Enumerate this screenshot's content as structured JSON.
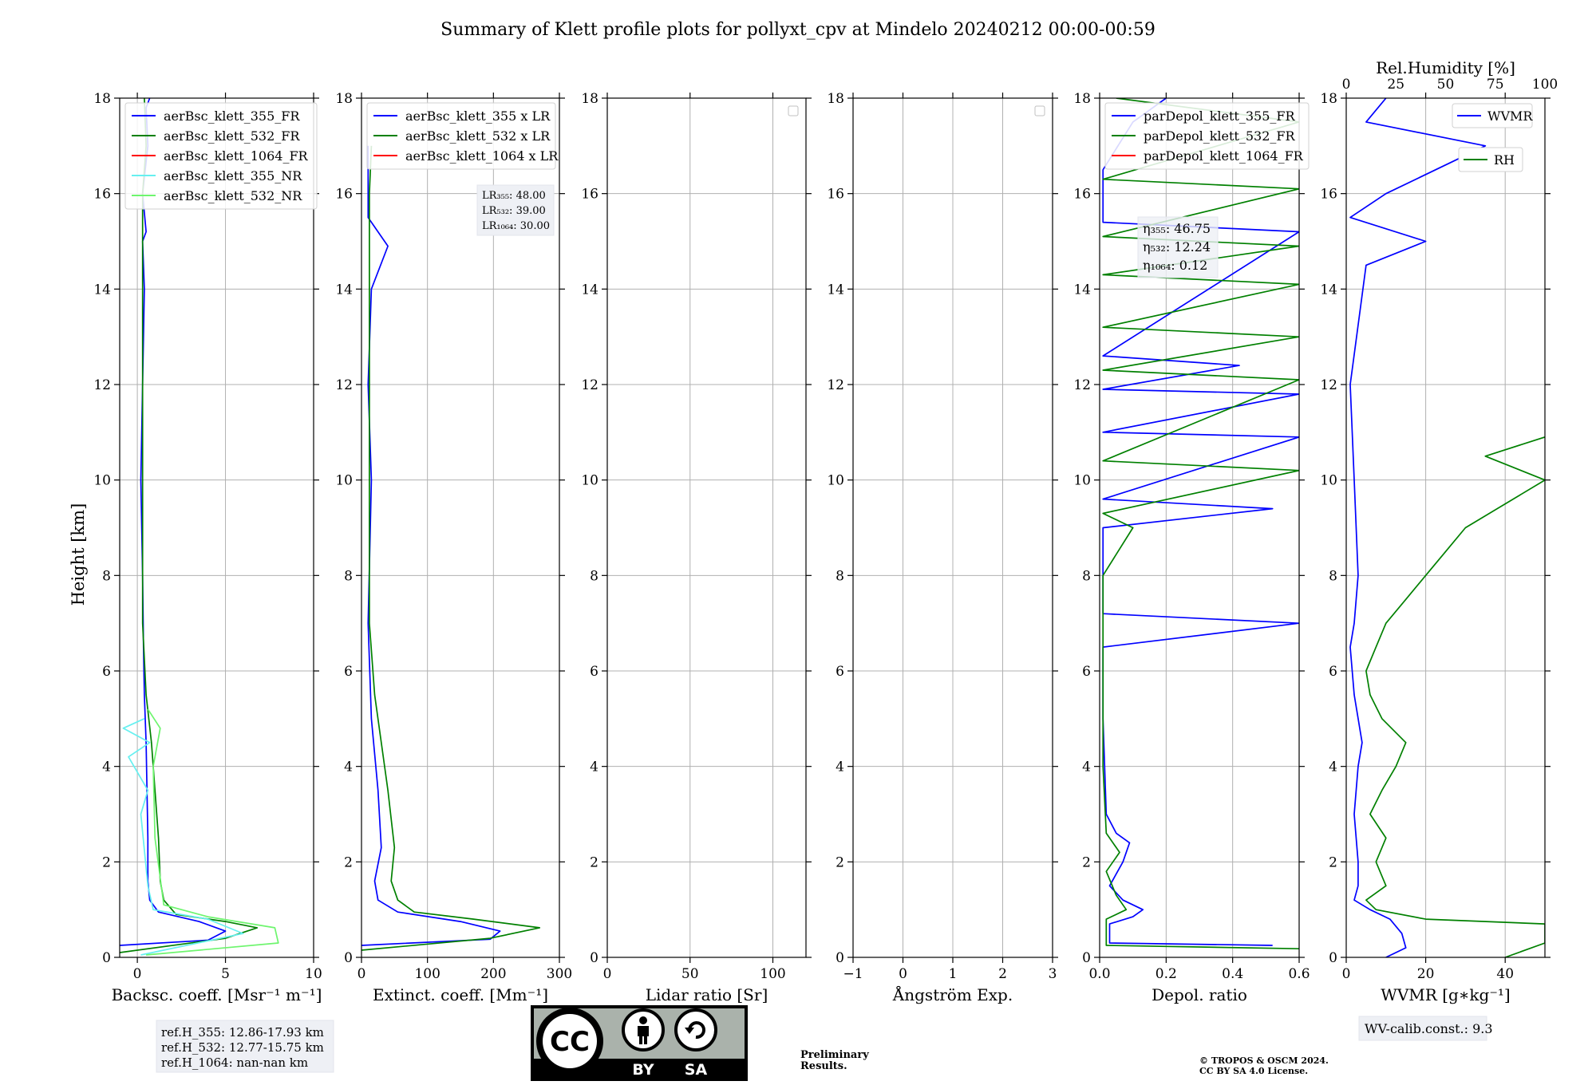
{
  "title": "Summary of Klett profile plots for pollyxt_cpv at Mindelo 20240212 00:00-00:59",
  "y_axis": {
    "label": "Height [km]",
    "range": [
      0,
      18
    ],
    "ticks": [
      "0",
      "2",
      "4",
      "6",
      "8",
      "10",
      "12",
      "14",
      "16",
      "18"
    ]
  },
  "colors": {
    "c355": "#0000ff",
    "c532": "#008000",
    "c1064": "#ff0000",
    "c355nr": "#66f0f0",
    "c532nr": "#6ef56e",
    "preliminary": "#e8302e"
  },
  "chart_data": [
    {
      "type": "line",
      "title": "Backscatter",
      "xlabel": "Backsc. coeff. [Msr⁻¹ m⁻¹]",
      "xlim": [
        -1,
        10
      ],
      "xticks": [
        {
          "v": 0,
          "t": "0"
        },
        {
          "v": 5,
          "t": "5"
        },
        {
          "v": 10,
          "t": "10"
        }
      ],
      "legend": [
        "aerBsc_klett_355_FR",
        "aerBsc_klett_532_FR",
        "aerBsc_klett_1064_FR",
        "aerBsc_klett_355_NR",
        "aerBsc_klett_532_NR"
      ],
      "series": [
        {
          "name": "aerBsc_klett_355_FR",
          "color": "#0000ff",
          "points": [
            [
              -1,
              0.25
            ],
            [
              4,
              0.36
            ],
            [
              5,
              0.55
            ],
            [
              3.5,
              0.75
            ],
            [
              1.2,
              0.95
            ],
            [
              0.7,
              1.2
            ],
            [
              0.6,
              1.6
            ],
            [
              0.6,
              2.5
            ],
            [
              0.55,
              3.5
            ],
            [
              0.5,
              4.5
            ],
            [
              0.4,
              5.5
            ],
            [
              0.35,
              6.5
            ],
            [
              0.3,
              8
            ],
            [
              0.2,
              10
            ],
            [
              0.3,
              12
            ],
            [
              0.4,
              14
            ],
            [
              0.3,
              15
            ],
            [
              0.5,
              15.2
            ],
            [
              0.3,
              16
            ],
            [
              0.6,
              17
            ],
            [
              0.5,
              17.8
            ],
            [
              0.7,
              18
            ]
          ]
        },
        {
          "name": "aerBsc_klett_532_FR",
          "color": "#008000",
          "points": [
            [
              -1,
              0.1
            ],
            [
              5,
              0.4
            ],
            [
              6.8,
              0.62
            ],
            [
              5,
              0.75
            ],
            [
              2.2,
              0.9
            ],
            [
              1.5,
              1.2
            ],
            [
              1.3,
              1.6
            ],
            [
              1.2,
              2.5
            ],
            [
              1.0,
              3.5
            ],
            [
              0.8,
              4.5
            ],
            [
              0.5,
              5.5
            ],
            [
              0.3,
              7
            ],
            [
              0.3,
              10
            ],
            [
              0.3,
              12
            ],
            [
              0.3,
              14
            ],
            [
              0.3,
              16
            ],
            [
              0.5,
              17
            ],
            [
              0.4,
              18
            ]
          ]
        },
        {
          "name": "aerBsc_klett_355_NR",
          "color": "#66f0f0",
          "points": [
            [
              0.2,
              0.05
            ],
            [
              6,
              0.5
            ],
            [
              4,
              0.8
            ],
            [
              0.9,
              1.0
            ],
            [
              0.6,
              1.5
            ],
            [
              0.2,
              3
            ],
            [
              0.6,
              3.5
            ],
            [
              -0.5,
              4.2
            ],
            [
              0.7,
              4.5
            ],
            [
              -0.8,
              4.8
            ],
            [
              0.4,
              5.0
            ]
          ]
        },
        {
          "name": "aerBsc_klett_532_NR",
          "color": "#6ef56e",
          "points": [
            [
              0.5,
              0.05
            ],
            [
              8,
              0.3
            ],
            [
              7.8,
              0.62
            ],
            [
              4,
              0.85
            ],
            [
              1.5,
              1.1
            ],
            [
              1.0,
              2.5
            ],
            [
              0.9,
              4.0
            ],
            [
              1.3,
              4.8
            ],
            [
              0.6,
              5.2
            ]
          ]
        }
      ]
    },
    {
      "type": "line",
      "title": "Extinction",
      "xlabel": "Extinct. coeff. [Mm⁻¹]",
      "xlim": [
        0,
        300
      ],
      "xticks": [
        {
          "v": 0,
          "t": "0"
        },
        {
          "v": 100,
          "t": "100"
        },
        {
          "v": 200,
          "t": "200"
        },
        {
          "v": 300,
          "t": "300"
        }
      ],
      "legend": [
        "aerBsc_klett_355 x LR",
        "aerBsc_klett_532 x LR",
        "aerBsc_klett_1064 x LR"
      ],
      "annotation": [
        "LR₃₅₅: 48.00",
        "LR₅₃₂: 39.00",
        "LR₁₀₆₄: 30.00"
      ],
      "series": [
        {
          "name": "aerBsc_klett_355 x LR",
          "color": "#0000ff",
          "points": [
            [
              0,
              0.25
            ],
            [
              195,
              0.38
            ],
            [
              210,
              0.55
            ],
            [
              150,
              0.75
            ],
            [
              55,
              0.95
            ],
            [
              25,
              1.2
            ],
            [
              20,
              1.6
            ],
            [
              30,
              2.3
            ],
            [
              25,
              3.5
            ],
            [
              15,
              5
            ],
            [
              10,
              7
            ],
            [
              15,
              10
            ],
            [
              10,
              12
            ],
            [
              15,
              14
            ],
            [
              40,
              14.9
            ],
            [
              10,
              15.5
            ],
            [
              10,
              17
            ]
          ]
        },
        {
          "name": "aerBsc_klett_532 x LR",
          "color": "#008000",
          "points": [
            [
              0,
              0.15
            ],
            [
              195,
              0.4
            ],
            [
              270,
              0.62
            ],
            [
              170,
              0.8
            ],
            [
              80,
              0.95
            ],
            [
              55,
              1.2
            ],
            [
              45,
              1.6
            ],
            [
              50,
              2.3
            ],
            [
              40,
              3.5
            ],
            [
              30,
              4.5
            ],
            [
              20,
              5.5
            ],
            [
              12,
              7
            ],
            [
              12,
              10
            ],
            [
              12,
              12
            ],
            [
              12,
              14
            ],
            [
              12,
              16
            ],
            [
              15,
              17
            ]
          ]
        }
      ]
    },
    {
      "type": "line",
      "title": "Lidar ratio",
      "xlabel": "Lidar ratio [Sr]",
      "xlim": [
        0,
        120
      ],
      "xticks": [
        {
          "v": 0,
          "t": "0"
        },
        {
          "v": 50,
          "t": "50"
        },
        {
          "v": 100,
          "t": "100"
        }
      ],
      "legend": [],
      "series": []
    },
    {
      "type": "line",
      "title": "Angstrom",
      "xlabel": "Ångström Exp.",
      "xlim": [
        -1,
        3
      ],
      "xticks": [
        {
          "v": -1,
          "t": "−1"
        },
        {
          "v": 0,
          "t": "0"
        },
        {
          "v": 1,
          "t": "1"
        },
        {
          "v": 2,
          "t": "2"
        },
        {
          "v": 3,
          "t": "3"
        }
      ],
      "legend": [],
      "series": []
    },
    {
      "type": "line",
      "title": "Depolarization",
      "xlabel": "Depol. ratio",
      "xlim": [
        0,
        0.6
      ],
      "xticks": [
        {
          "v": 0,
          "t": "0.0"
        },
        {
          "v": 0.2,
          "t": "0.2"
        },
        {
          "v": 0.4,
          "t": "0.4"
        },
        {
          "v": 0.6,
          "t": "0.6"
        }
      ],
      "legend": [
        "parDepol_klett_355_FR",
        "parDepol_klett_532_FR",
        "parDepol_klett_1064_FR"
      ],
      "annotation": [
        "η₃₅₅: 46.75",
        "η₅₃₂: 12.24",
        "η₁₀₆₄: 0.12"
      ],
      "series": [
        {
          "name": "parDepol_klett_355_FR",
          "color": "#0000ff",
          "points": [
            [
              0.52,
              0.25
            ],
            [
              0.03,
              0.3
            ],
            [
              0.03,
              0.7
            ],
            [
              0.1,
              0.85
            ],
            [
              0.13,
              1.0
            ],
            [
              0.07,
              1.2
            ],
            [
              0.03,
              1.5
            ],
            [
              0.07,
              2.0
            ],
            [
              0.09,
              2.4
            ],
            [
              0.05,
              2.6
            ],
            [
              0.02,
              3.0
            ],
            [
              0.01,
              5
            ],
            [
              0.01,
              6.5
            ],
            [
              0.6,
              7.0
            ],
            [
              0.01,
              7.2
            ],
            [
              0.01,
              9
            ],
            [
              0.52,
              9.4
            ],
            [
              0.01,
              9.6
            ],
            [
              0.6,
              10.9
            ],
            [
              0.01,
              11.0
            ],
            [
              0.6,
              11.8
            ],
            [
              0.01,
              11.9
            ],
            [
              0.42,
              12.4
            ],
            [
              0.01,
              12.6
            ],
            [
              0.6,
              15.2
            ],
            [
              0.01,
              15.4
            ],
            [
              0.01,
              16.5
            ],
            [
              0.1,
              17.5
            ],
            [
              0.2,
              18
            ]
          ]
        },
        {
          "name": "parDepol_klett_532_FR",
          "color": "#008000",
          "points": [
            [
              0.6,
              0.18
            ],
            [
              0.02,
              0.25
            ],
            [
              0.02,
              0.8
            ],
            [
              0.08,
              1.0
            ],
            [
              0.05,
              1.3
            ],
            [
              0.02,
              1.8
            ],
            [
              0.06,
              2.2
            ],
            [
              0.02,
              2.6
            ],
            [
              0.01,
              4
            ],
            [
              0.01,
              8
            ],
            [
              0.1,
              9.0
            ],
            [
              0.01,
              9.3
            ],
            [
              0.6,
              10.2
            ],
            [
              0.01,
              10.4
            ],
            [
              0.6,
              12.1
            ],
            [
              0.01,
              12.3
            ],
            [
              0.6,
              13.0
            ],
            [
              0.01,
              13.2
            ],
            [
              0.6,
              14.1
            ],
            [
              0.01,
              14.3
            ],
            [
              0.6,
              14.9
            ],
            [
              0.01,
              15.1
            ],
            [
              0.6,
              16.1
            ],
            [
              0.01,
              16.3
            ],
            [
              0.6,
              17.5
            ],
            [
              0.05,
              18
            ]
          ]
        }
      ]
    },
    {
      "type": "line",
      "title": "Water vapor",
      "xlabel": "WVMR [g∗kg⁻¹]",
      "xlim": [
        0,
        50
      ],
      "xticks": [
        {
          "v": 0,
          "t": "0"
        },
        {
          "v": 20,
          "t": "20"
        },
        {
          "v": 40,
          "t": "40"
        }
      ],
      "top_axis": {
        "label": "Rel.Humidity [%]",
        "range": [
          0,
          100
        ],
        "ticks": [
          {
            "v": 0,
            "t": "0"
          },
          {
            "v": 25,
            "t": "25"
          },
          {
            "v": 50,
            "t": "50"
          },
          {
            "v": 75,
            "t": "75"
          },
          {
            "v": 100,
            "t": "100"
          }
        ]
      },
      "legend": [
        "WVMR",
        "RH"
      ],
      "annotation": [
        "WV-calib.const.: 9.3"
      ],
      "series": [
        {
          "name": "WVMR",
          "color": "#0000ff",
          "points": [
            [
              10,
              0.0
            ],
            [
              15,
              0.2
            ],
            [
              14,
              0.5
            ],
            [
              11,
              0.8
            ],
            [
              6,
              1.0
            ],
            [
              2,
              1.2
            ],
            [
              3,
              1.5
            ],
            [
              3,
              2.0
            ],
            [
              2,
              3.0
            ],
            [
              3,
              4.0
            ],
            [
              4,
              4.5
            ],
            [
              2,
              5.5
            ],
            [
              1,
              6.5
            ],
            [
              2,
              7.0
            ],
            [
              3,
              8.0
            ],
            [
              2,
              10
            ],
            [
              1,
              12
            ],
            [
              5,
              14.5
            ],
            [
              20,
              15
            ],
            [
              1,
              15.5
            ],
            [
              10,
              16
            ],
            [
              35,
              17
            ],
            [
              5,
              17.5
            ],
            [
              10,
              18
            ]
          ]
        },
        {
          "name": "RH",
          "color": "#008000",
          "axis": "top",
          "points": [
            [
              80,
              0
            ],
            [
              100,
              0.3
            ],
            [
              100,
              0.7
            ],
            [
              40,
              0.8
            ],
            [
              15,
              1.0
            ],
            [
              10,
              1.2
            ],
            [
              20,
              1.5
            ],
            [
              15,
              2.0
            ],
            [
              20,
              2.5
            ],
            [
              12,
              3.0
            ],
            [
              18,
              3.5
            ],
            [
              25,
              4.0
            ],
            [
              30,
              4.5
            ],
            [
              18,
              5.0
            ],
            [
              12,
              5.5
            ],
            [
              10,
              6.0
            ],
            [
              15,
              6.5
            ],
            [
              20,
              7.0
            ],
            [
              30,
              7.5
            ],
            [
              40,
              8.0
            ],
            [
              50,
              8.5
            ],
            [
              60,
              9.0
            ],
            [
              80,
              9.5
            ],
            [
              100,
              10.0
            ],
            [
              70,
              10.5
            ],
            [
              100,
              10.9
            ]
          ]
        }
      ]
    }
  ],
  "ref_box": [
    "ref.H_355: 12.86-17.93 km",
    "ref.H_532: 12.77-15.75 km",
    "ref.H_1064: nan-nan km"
  ],
  "license_badge": {
    "cc": "CC",
    "by": "BY",
    "sa": "SA"
  },
  "preliminary": [
    "Preliminary",
    "Results."
  ],
  "copyright": [
    "© TROPOS & OSCM 2024.",
    "CC BY SA 4.0 License."
  ]
}
